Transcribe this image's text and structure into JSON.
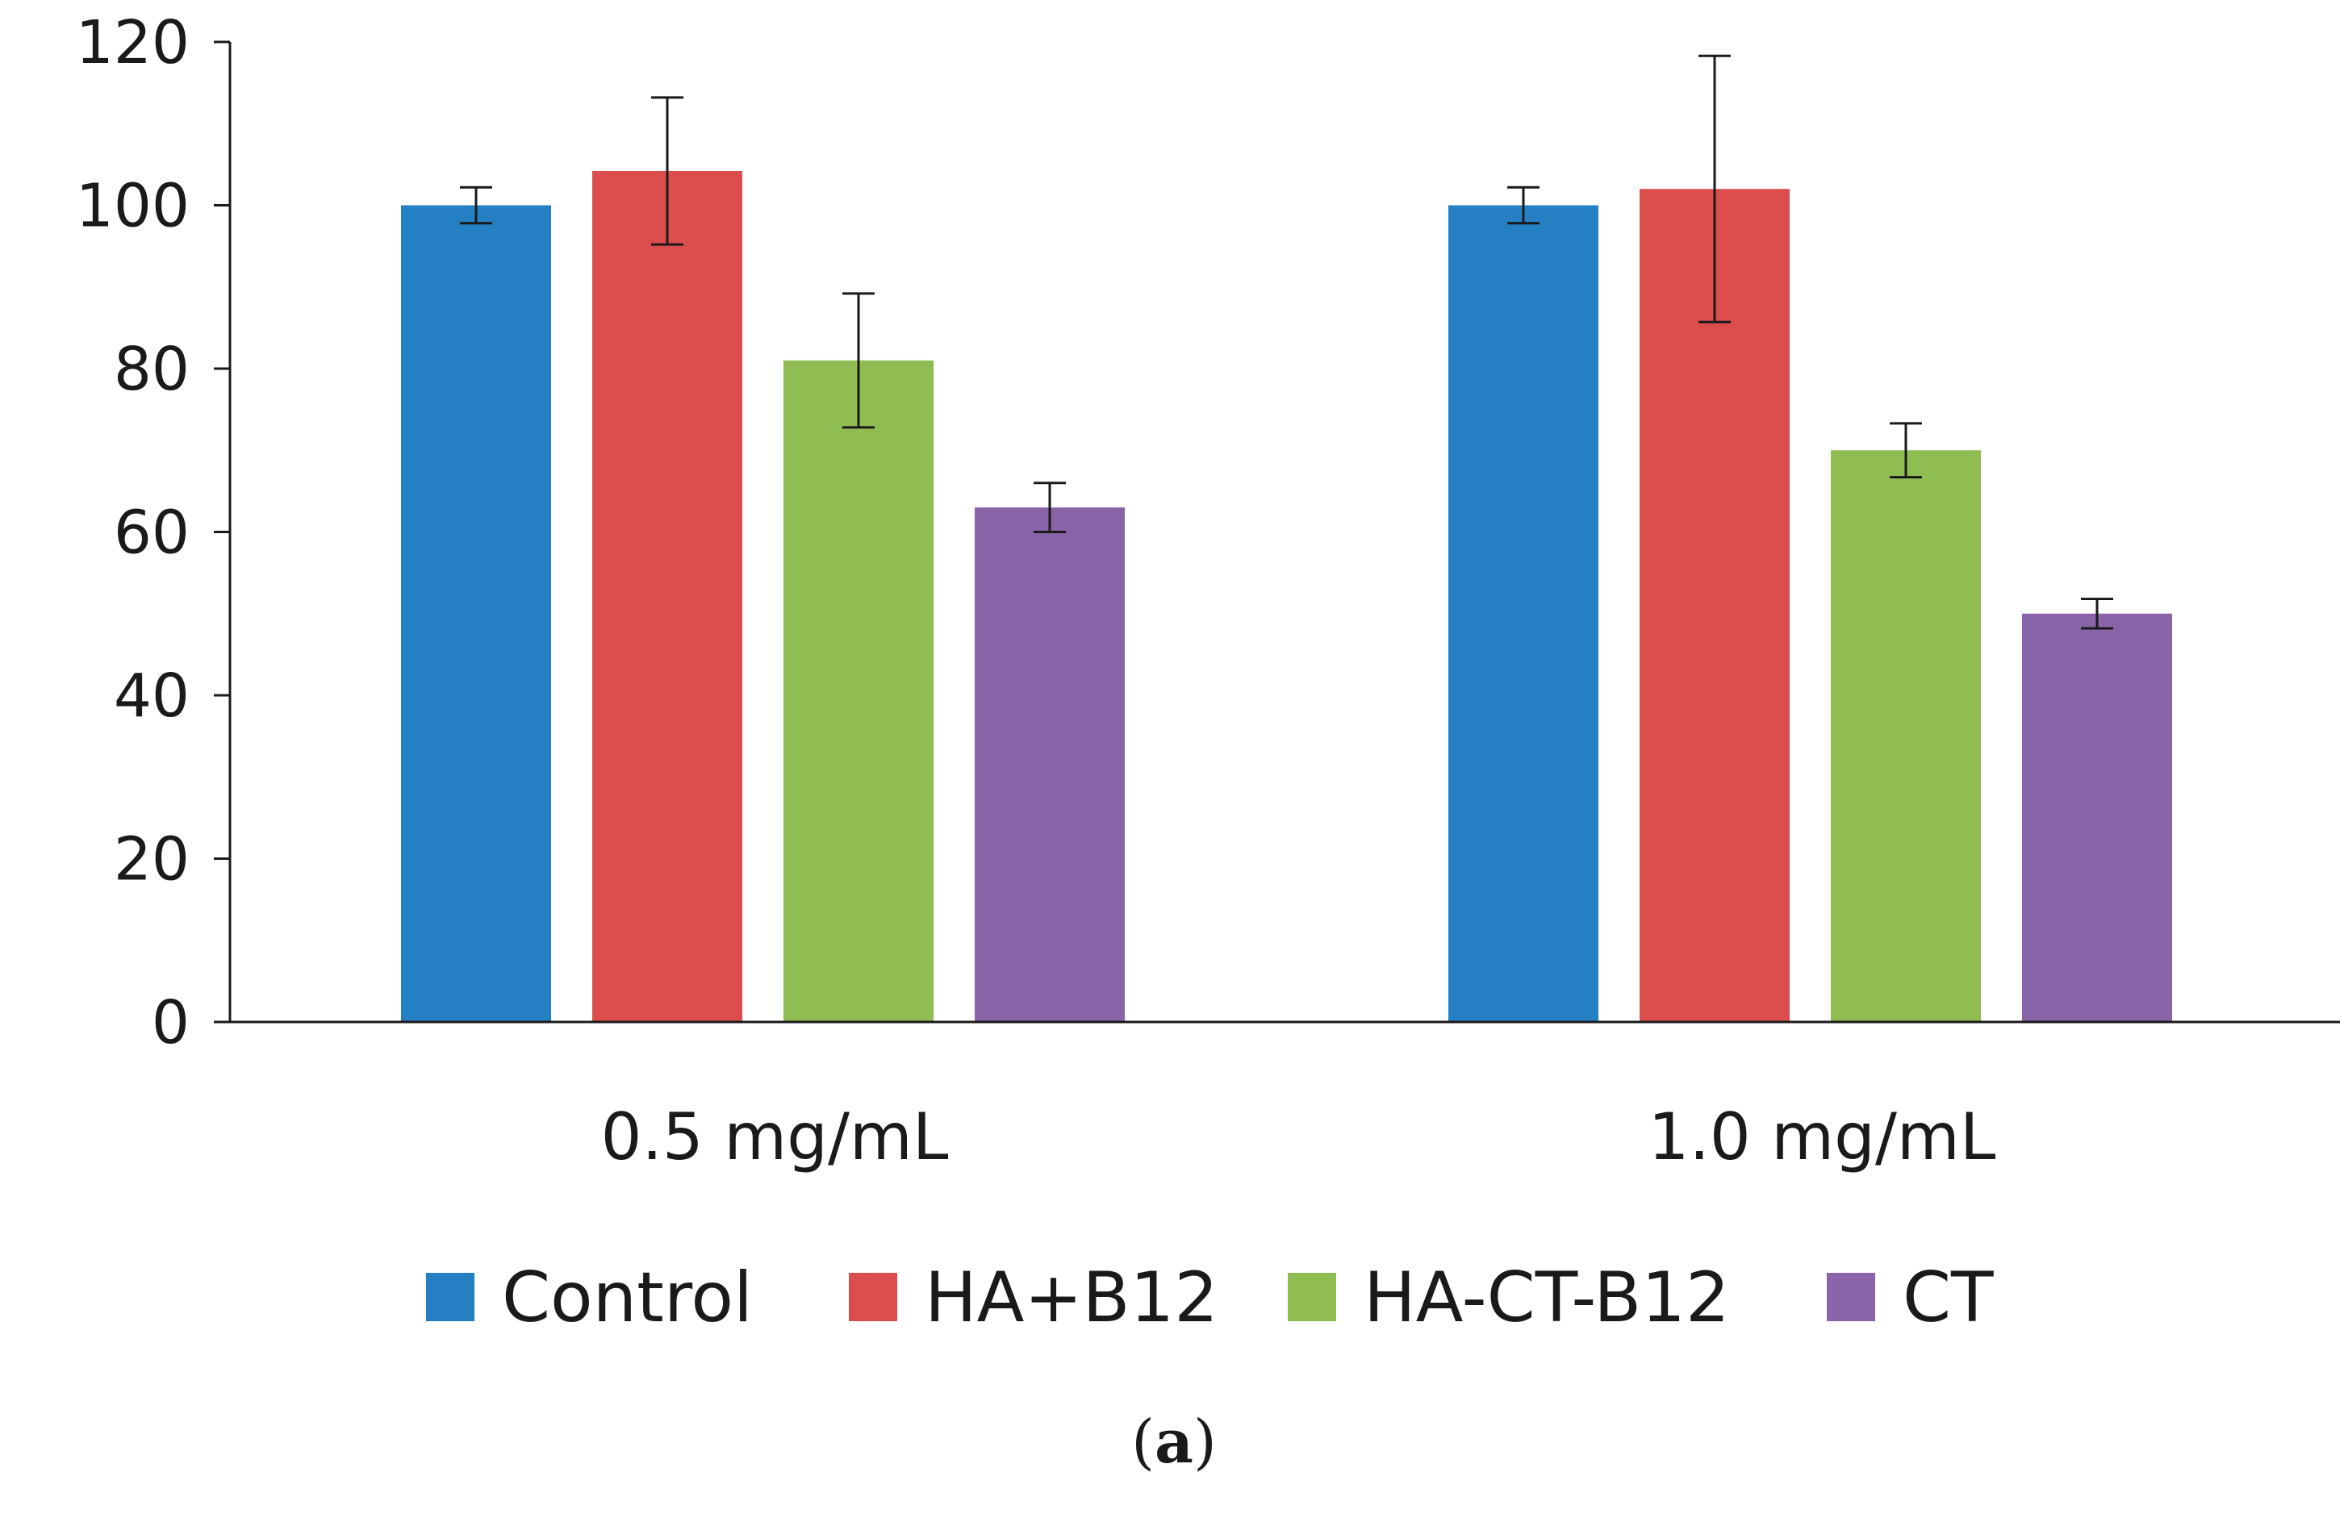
{
  "chart_data": {
    "type": "bar",
    "title": "",
    "xlabel": "",
    "ylabel": "",
    "ylim": [
      0,
      120
    ],
    "yticks": [
      "0",
      "20",
      "40",
      "60",
      "80",
      "100",
      "120"
    ],
    "categories": [
      "0.5 mg/mL",
      "1.0 mg/mL"
    ],
    "series": [
      {
        "name": "Control",
        "color": "#2580c3",
        "values": [
          100,
          100
        ],
        "errors": [
          2.2,
          2.2
        ]
      },
      {
        "name": "HA+B12",
        "color": "#dc4d4d",
        "values": [
          104.2,
          102
        ],
        "errors": [
          9,
          16.3
        ]
      },
      {
        "name": "HA-CT-B12",
        "color": "#8fbd52",
        "values": [
          81,
          70
        ],
        "errors": [
          8.2,
          3.3
        ]
      },
      {
        "name": "CT",
        "color": "#8a64a8",
        "values": [
          63,
          50
        ],
        "errors": [
          3,
          1.8
        ]
      }
    ],
    "legend_position": "bottom",
    "grid": false
  },
  "caption": {
    "open": "(",
    "label": "a",
    "close": ")"
  }
}
